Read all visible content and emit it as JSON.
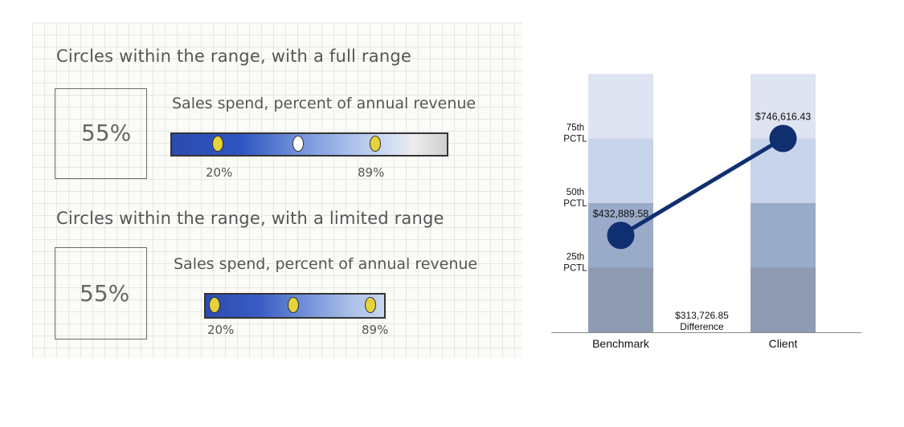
{
  "sketch": {
    "section1": {
      "heading": "Circles within the range, with a full range",
      "value": "55%",
      "metric_label": "Sales spend, percent of annual revenue",
      "low_label": "20%",
      "high_label": "89%"
    },
    "section2": {
      "heading": "Circles within the range, with a limited range",
      "value": "55%",
      "metric_label": "Sales spend, percent of annual revenue",
      "low_label": "20%",
      "high_label": "89%"
    }
  },
  "chart_data": {
    "type": "bar",
    "categories": [
      "Benchmark",
      "Client"
    ],
    "percentile_labels": [
      {
        "line1": "75th",
        "line2": "PCTL"
      },
      {
        "line1": "50th",
        "line2": "PCTL"
      },
      {
        "line1": "25th",
        "line2": "PCTL"
      }
    ],
    "points": [
      {
        "category": "Benchmark",
        "band": 1.5,
        "label": "$432,889.58"
      },
      {
        "category": "Client",
        "band": 3,
        "label": "$746,616.43"
      }
    ],
    "difference": {
      "value": "$313,726.85",
      "label": "Difference"
    },
    "band_colors": [
      "#8f9bb3",
      "#9aaac9",
      "#c8d3ec",
      "#dee4f1"
    ],
    "point_color": "#0f2f70"
  }
}
